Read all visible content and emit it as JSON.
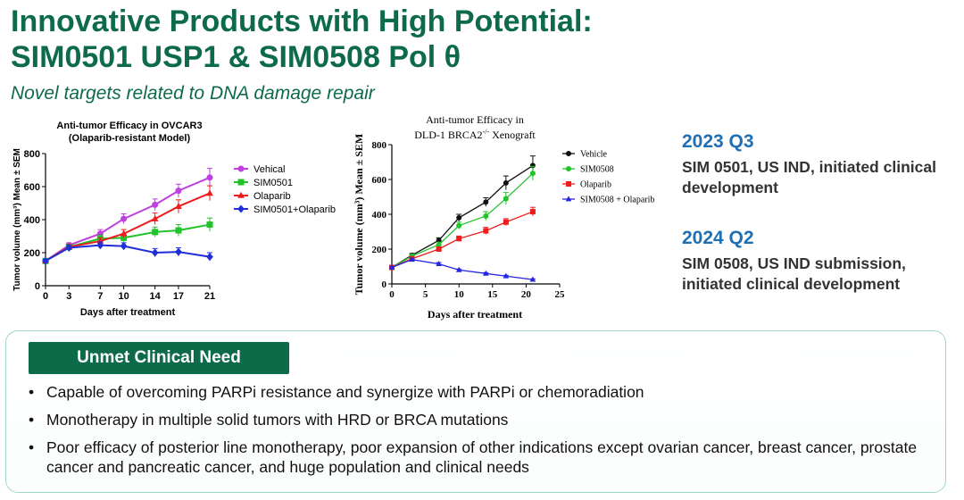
{
  "header": {
    "title_line1": "Innovative Products with High Potential:",
    "title_line2": "SIM0501 USP1 & SIM0508 Pol θ",
    "subtitle": "Novel targets related to DNA damage repair"
  },
  "chart_data": [
    {
      "type": "line",
      "title": "Anti-tumor Efficacy in OVCAR3",
      "subtitle": "(Olaparib-resistant Model)",
      "xlabel": "Days after treatment",
      "ylabel": "Tumor volume (mm³) Mean ± SEM",
      "xlim": [
        0,
        21
      ],
      "ylim": [
        0,
        800
      ],
      "xticks": [
        0,
        3,
        7,
        10,
        14,
        17,
        21
      ],
      "yticks": [
        0,
        200,
        400,
        600,
        800
      ],
      "legend_position": "top-right",
      "grid": false,
      "x": [
        0,
        3,
        7,
        10,
        14,
        17,
        21
      ],
      "series": [
        {
          "name": "Vehical",
          "color": "#bf3fe0",
          "marker": "circle",
          "values": [
            150,
            245,
            315,
            405,
            490,
            575,
            655
          ],
          "errors": [
            10,
            15,
            25,
            30,
            35,
            40,
            55
          ]
        },
        {
          "name": "SIM0501",
          "color": "#22c22a",
          "marker": "square",
          "values": [
            150,
            235,
            285,
            290,
            325,
            335,
            370
          ],
          "errors": [
            10,
            15,
            20,
            25,
            30,
            35,
            40
          ]
        },
        {
          "name": "Olaparib",
          "color": "#ee1c1c",
          "marker": "triangle",
          "values": [
            150,
            235,
            270,
            315,
            405,
            480,
            560
          ],
          "errors": [
            10,
            15,
            20,
            25,
            35,
            40,
            45
          ]
        },
        {
          "name": "SIM0501+Olaparib",
          "color": "#1f2fd8",
          "marker": "diamond",
          "values": [
            150,
            230,
            245,
            240,
            200,
            205,
            175
          ],
          "errors": [
            10,
            15,
            20,
            20,
            25,
            25,
            25
          ]
        }
      ]
    },
    {
      "type": "line",
      "title_line1": "Anti-tumor Efficacy in",
      "title_line2_pre": "DLD-1 BRCA2",
      "title_line2_sup": "-/-",
      "title_line2_post": " Xenograft",
      "xlabel": "Days after treatment",
      "ylabel": "Tumor volume (mm³) Mean ± SEM",
      "xlim": [
        0,
        25
      ],
      "ylim": [
        0,
        800
      ],
      "xticks": [
        0,
        5,
        10,
        15,
        20,
        25
      ],
      "yticks": [
        0,
        200,
        400,
        600,
        800
      ],
      "legend_position": "top-right",
      "grid": false,
      "x": [
        0,
        3,
        7,
        10,
        14,
        17,
        21
      ],
      "series": [
        {
          "name": "Vehicle",
          "color": "#111111",
          "marker": "circle",
          "values": [
            95,
            165,
            250,
            380,
            470,
            580,
            680
          ],
          "errors": [
            5,
            10,
            15,
            20,
            25,
            40,
            55
          ]
        },
        {
          "name": "SIM0508",
          "color": "#22c22a",
          "marker": "circle",
          "values": [
            95,
            160,
            225,
            335,
            390,
            490,
            635
          ],
          "errors": [
            5,
            10,
            15,
            20,
            25,
            35,
            40
          ]
        },
        {
          "name": "Olaparib",
          "color": "#ee1c1c",
          "marker": "square",
          "values": [
            95,
            145,
            200,
            260,
            305,
            355,
            415
          ],
          "errors": [
            5,
            10,
            10,
            15,
            20,
            20,
            25
          ]
        },
        {
          "name": "SIM0508 + Olaparib",
          "color": "#2626e0",
          "marker": "triangle",
          "values": [
            95,
            140,
            115,
            80,
            60,
            45,
            25
          ],
          "errors": [
            5,
            8,
            8,
            6,
            5,
            5,
            4
          ]
        }
      ]
    }
  ],
  "milestones": [
    {
      "quarter": "2023 Q3",
      "description": "SIM 0501, US IND, initiated clinical development"
    },
    {
      "quarter": "2024 Q2",
      "description": "SIM 0508, US IND submission, initiated clinical development"
    }
  ],
  "unmet_need": {
    "heading": "Unmet Clinical Need",
    "bullet_char": "•",
    "items": [
      "Capable of overcoming PARPi resistance and synergize with PARPi or chemoradiation",
      "Monotherapy in multiple solid tumors with HRD or BRCA mutations",
      "Poor efficacy of posterior line monotherapy, poor expansion of other indications except ovarian cancer, breast cancer, prostate cancer and pancreatic cancer, and huge population and clinical needs"
    ]
  }
}
